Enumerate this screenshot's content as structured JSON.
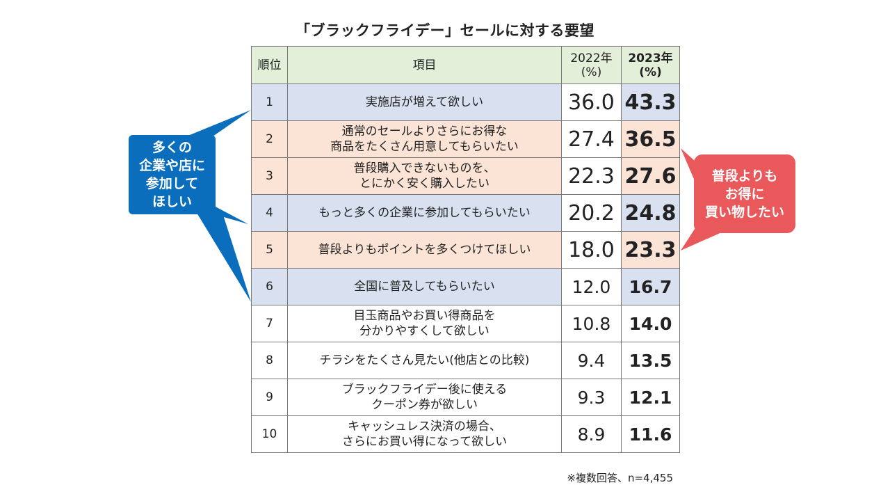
{
  "title": "「ブラックフライデー」セールに対する要望",
  "note": "※複数回答、n=4,455",
  "callouts": {
    "left": [
      "多くの",
      "企業や店に",
      "参加して",
      "ほしい"
    ],
    "right": [
      "普段よりも",
      "お得に",
      "買い物したい"
    ],
    "colors": {
      "left": "#0a6ebd",
      "right": "#e9585a"
    }
  },
  "chart_data": {
    "type": "table",
    "title": "「ブラックフライデー」セールに対する要望",
    "columns": {
      "rank": "順位",
      "item": "項目",
      "y2022": [
        "2022年",
        "(%)"
      ],
      "y2023": [
        "2023年",
        "(%)"
      ]
    },
    "rows": [
      {
        "rank": "1",
        "item": [
          "実施店が増えて欲しい"
        ],
        "y2022": "36.0",
        "y2023": "43.3",
        "bg": "blue"
      },
      {
        "rank": "2",
        "item": [
          "通常のセールよりさらにお得な",
          "商品をたくさん用意してもらいたい"
        ],
        "y2022": "27.4",
        "y2023": "36.5",
        "bg": "peach"
      },
      {
        "rank": "3",
        "item": [
          "普段購入できないものを、",
          "とにかく安く購入したい"
        ],
        "y2022": "22.3",
        "y2023": "27.6",
        "bg": "peach"
      },
      {
        "rank": "4",
        "item": [
          "もっと多くの企業に参加してもらいたい"
        ],
        "y2022": "20.2",
        "y2023": "24.8",
        "bg": "blue"
      },
      {
        "rank": "5",
        "item": [
          "普段よりもポイントを多くつけてほしい"
        ],
        "y2022": "18.0",
        "y2023": "23.3",
        "bg": "peach"
      },
      {
        "rank": "6",
        "item": [
          "全国に普及してもらいたい"
        ],
        "y2022": "12.0",
        "y2023": "16.7",
        "bg": "blue"
      },
      {
        "rank": "7",
        "item": [
          "目玉商品やお買い得商品を",
          "分かりやすくして欲しい"
        ],
        "y2022": "10.8",
        "y2023": "14.0",
        "bg": "white"
      },
      {
        "rank": "8",
        "item": [
          "チラシをたくさん見たい(他店との比較)"
        ],
        "y2022": "9.4",
        "y2023": "13.5",
        "bg": "white"
      },
      {
        "rank": "9",
        "item": [
          "ブラックフライデー後に使える",
          "クーポン券が欲しい"
        ],
        "y2022": "9.3",
        "y2023": "12.1",
        "bg": "white"
      },
      {
        "rank": "10",
        "item": [
          "キャッシュレス決済の場合、",
          "さらにお買い得になって欲しい"
        ],
        "y2022": "8.9",
        "y2023": "11.6",
        "bg": "white"
      }
    ],
    "colors": {
      "header": "#e3efd9",
      "blue": "#d9e1f1",
      "peach": "#fbe4d6",
      "white": "#ffffff"
    }
  }
}
